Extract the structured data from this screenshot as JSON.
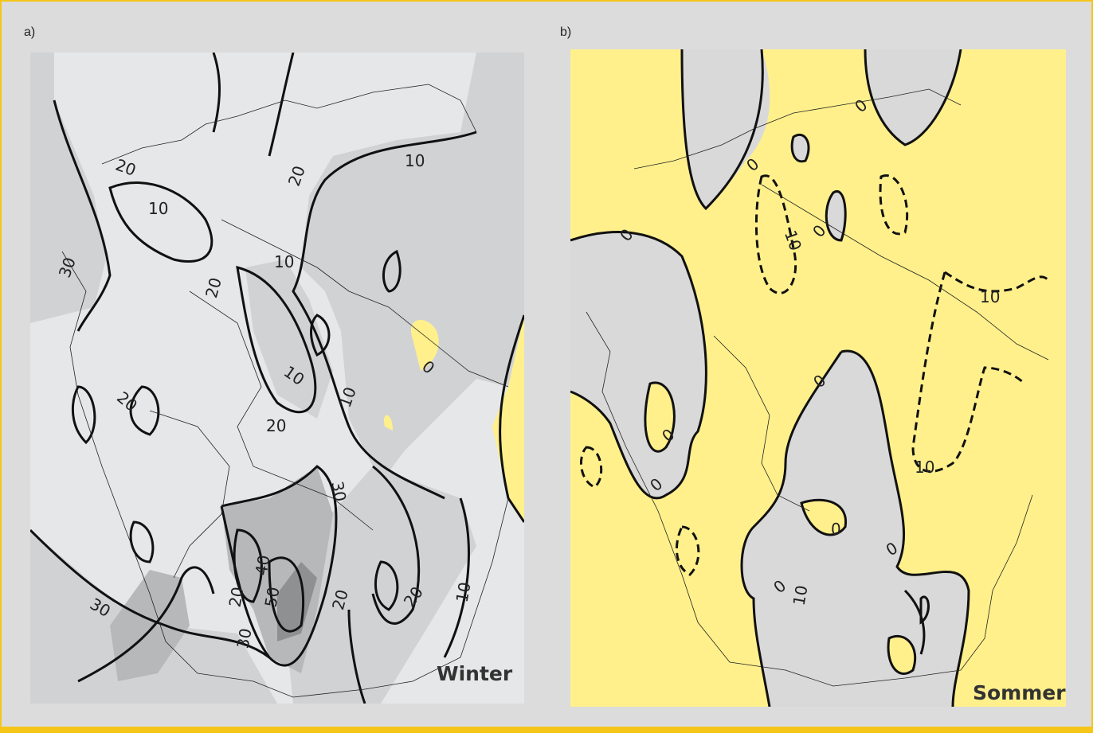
{
  "panels": [
    {
      "id": "a",
      "label": "a)",
      "season": "Winter",
      "contour_labels": [
        "10",
        "20",
        "30",
        "40",
        "50",
        "0"
      ],
      "shading_colors": {
        "background": "#e6e7e8",
        "level1": "#d1d2d4",
        "level2": "#b7b8ba",
        "level3": "#8f9092",
        "positive": "#fff08c"
      }
    },
    {
      "id": "b",
      "label": "b)",
      "season": "Sommer",
      "contour_labels": [
        "0",
        "10"
      ],
      "shading_colors": {
        "background": "#fff08c",
        "negative": "#d9d9da"
      }
    }
  ],
  "frame_color": "#f5c518",
  "page_background": "#dcdcdc"
}
